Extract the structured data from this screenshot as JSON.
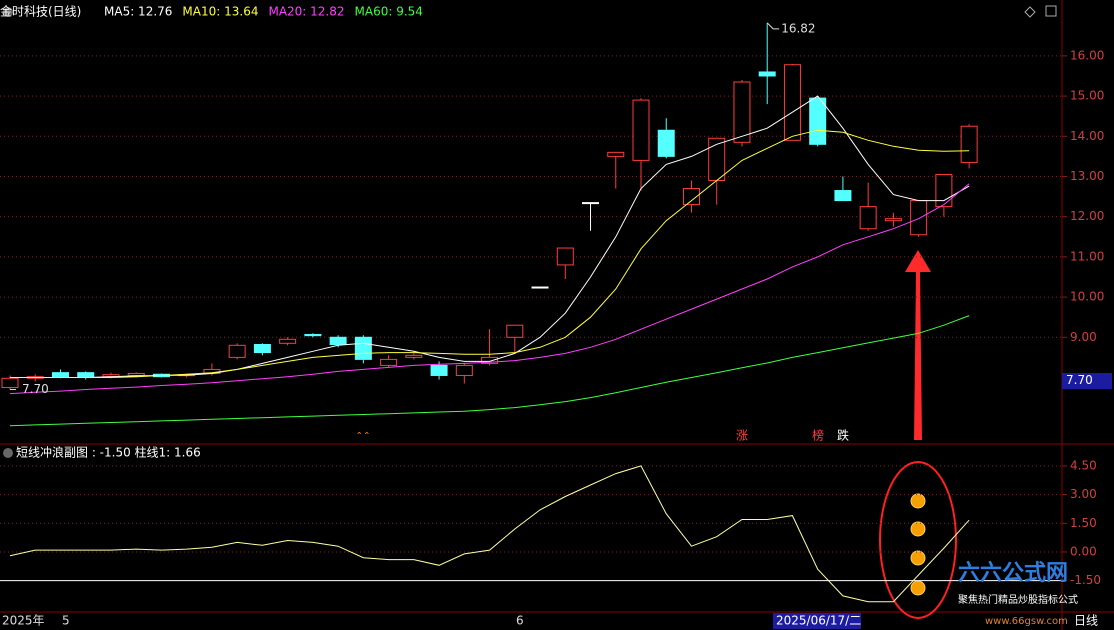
{
  "chart_data": [
    {
      "type": "candlestick",
      "title": "金时科技(日线)",
      "open": [
        7.75,
        7.98,
        8.12,
        8.12,
        8.02,
        8.05,
        8.08,
        8.05,
        8.1,
        8.5,
        8.82,
        8.85,
        9.07,
        9.0,
        9.0,
        8.3,
        8.5,
        8.3,
        8.05,
        8.35,
        9.0,
        10.25,
        10.8,
        12.35,
        13.5,
        13.4,
        14.15,
        12.3,
        12.9,
        13.85,
        15.6,
        13.9,
        14.95,
        12.65,
        11.7,
        11.9,
        11.55,
        12.25,
        13.35
      ],
      "high": [
        8.05,
        8.08,
        8.2,
        8.15,
        8.12,
        8.13,
        8.1,
        8.1,
        8.35,
        8.85,
        8.85,
        9.0,
        9.1,
        9.05,
        9.05,
        8.55,
        8.6,
        8.4,
        8.35,
        9.2,
        9.3,
        10.25,
        11.22,
        12.35,
        13.6,
        14.95,
        14.45,
        12.9,
        13.95,
        15.4,
        16.82,
        15.8,
        15.0,
        13.0,
        12.85,
        12.1,
        12.4,
        13.05,
        14.3
      ],
      "low": [
        7.7,
        7.9,
        7.98,
        7.95,
        7.98,
        8.0,
        8.0,
        8.0,
        8.05,
        8.45,
        8.55,
        8.8,
        9.0,
        8.75,
        8.35,
        8.25,
        8.45,
        7.95,
        7.85,
        8.3,
        8.6,
        10.25,
        10.45,
        11.65,
        12.7,
        12.65,
        13.45,
        12.1,
        12.3,
        13.75,
        14.8,
        13.9,
        13.75,
        12.4,
        11.65,
        11.75,
        11.5,
        12.0,
        13.2
      ],
      "close": [
        7.98,
        8.02,
        8.0,
        8.0,
        8.07,
        8.1,
        8.02,
        8.07,
        8.2,
        8.8,
        8.62,
        8.95,
        9.04,
        8.82,
        8.45,
        8.45,
        8.55,
        8.05,
        8.3,
        8.5,
        9.3,
        10.25,
        11.22,
        12.35,
        13.6,
        14.9,
        13.5,
        12.7,
        13.95,
        15.35,
        15.5,
        15.78,
        13.8,
        12.4,
        12.25,
        11.95,
        12.4,
        13.05,
        14.25
      ],
      "up_color": "#ff3c3c",
      "down_color": "#54ffff",
      "flat_color": "#ffffff",
      "series": [
        {
          "label": "MA5: 12.76",
          "color": "#ffffff",
          "values": [
            8.0,
            8.0,
            8.0,
            8.0,
            8.02,
            8.04,
            8.05,
            8.06,
            8.1,
            8.2,
            8.35,
            8.5,
            8.65,
            8.8,
            8.85,
            8.75,
            8.65,
            8.5,
            8.4,
            8.4,
            8.6,
            9.0,
            9.6,
            10.5,
            11.5,
            12.7,
            13.3,
            13.5,
            13.8,
            14.0,
            14.2,
            14.6,
            15.0,
            14.2,
            13.3,
            12.55,
            12.4,
            12.4,
            12.76
          ]
        },
        {
          "label": "MA10: 13.64",
          "color": "#ffff40",
          "values": [
            8.0,
            8.0,
            8.0,
            8.0,
            8.0,
            8.02,
            8.05,
            8.08,
            8.12,
            8.2,
            8.3,
            8.4,
            8.5,
            8.55,
            8.6,
            8.62,
            8.62,
            8.6,
            8.58,
            8.58,
            8.62,
            8.75,
            9.0,
            9.5,
            10.2,
            11.2,
            11.9,
            12.4,
            12.9,
            13.4,
            13.7,
            14.0,
            14.15,
            14.1,
            13.9,
            13.75,
            13.65,
            13.63,
            13.64
          ]
        },
        {
          "label": "MA20: 12.82",
          "color": "#ff40ff",
          "values": [
            7.6,
            7.63,
            7.66,
            7.7,
            7.73,
            7.76,
            7.8,
            7.83,
            7.87,
            7.92,
            7.97,
            8.02,
            8.08,
            8.15,
            8.2,
            8.25,
            8.3,
            8.33,
            8.35,
            8.38,
            8.42,
            8.5,
            8.6,
            8.75,
            8.95,
            9.2,
            9.45,
            9.7,
            9.95,
            10.2,
            10.45,
            10.75,
            11.0,
            11.3,
            11.5,
            11.7,
            11.95,
            12.3,
            12.82
          ]
        },
        {
          "label": "MA60: 9.54",
          "color": "#40ff40",
          "values": [
            6.8,
            6.82,
            6.84,
            6.86,
            6.88,
            6.9,
            6.92,
            6.94,
            6.96,
            6.98,
            7.0,
            7.02,
            7.04,
            7.06,
            7.08,
            7.1,
            7.12,
            7.14,
            7.16,
            7.2,
            7.25,
            7.32,
            7.4,
            7.5,
            7.62,
            7.75,
            7.88,
            8.0,
            8.12,
            8.24,
            8.36,
            8.5,
            8.62,
            8.74,
            8.86,
            8.98,
            9.1,
            9.3,
            9.54
          ]
        }
      ],
      "ylim": [
        6.37,
        17.39
      ],
      "yticks": [
        {
          "value": 9,
          "label": "9.00"
        },
        {
          "value": 10,
          "label": "10.00"
        },
        {
          "value": 11,
          "label": "11.00"
        },
        {
          "value": 12,
          "label": "12.00"
        },
        {
          "value": 13,
          "label": "13.00"
        },
        {
          "value": 14,
          "label": "14.00"
        },
        {
          "value": 15,
          "label": "15.00"
        },
        {
          "value": 16,
          "label": "16.00"
        }
      ],
      "grid": true,
      "high_mark": {
        "value": 16.82,
        "label": "16.82"
      },
      "low_mark": {
        "value": 7.7,
        "label": "7.70"
      },
      "price_box": {
        "value": 7.7,
        "label": "7.70"
      },
      "markers": [
        "涨",
        "榜",
        "跌"
      ]
    },
    {
      "type": "line",
      "title": "短线冲浪副图 : -1.50  柱线1: 1.66",
      "color": "#ffffa0",
      "values": [
        -0.2,
        0.1,
        0.1,
        0.1,
        0.1,
        0.15,
        0.1,
        0.15,
        0.25,
        0.5,
        0.35,
        0.6,
        0.5,
        0.3,
        -0.3,
        -0.4,
        -0.4,
        -0.7,
        -0.1,
        0.1,
        1.2,
        2.2,
        2.9,
        3.5,
        4.1,
        4.5,
        2.0,
        0.3,
        0.8,
        1.7,
        1.7,
        1.9,
        -0.9,
        -2.3,
        -2.6,
        -2.6,
        -1.2,
        0.2,
        1.66
      ],
      "reference_line": -1.5,
      "ylim": [
        -3.14,
        5.49
      ],
      "yticks": [
        {
          "value": 4.5,
          "label": "4.50"
        },
        {
          "value": 3,
          "label": "3.00"
        },
        {
          "value": 1.5,
          "label": "1.50"
        },
        {
          "value": 0,
          "label": "0.00"
        },
        {
          "value": -1.5,
          "label": "-1.50"
        }
      ],
      "grid": true
    }
  ],
  "x_axis_labels": [
    "2025年",
    "5",
    "6",
    "2025/06/17/二",
    "日线"
  ],
  "watermark": {
    "name": "六六公式网",
    "slogan": "聚焦热门精品炒股指标公式",
    "url": "www.66gsw.com"
  }
}
